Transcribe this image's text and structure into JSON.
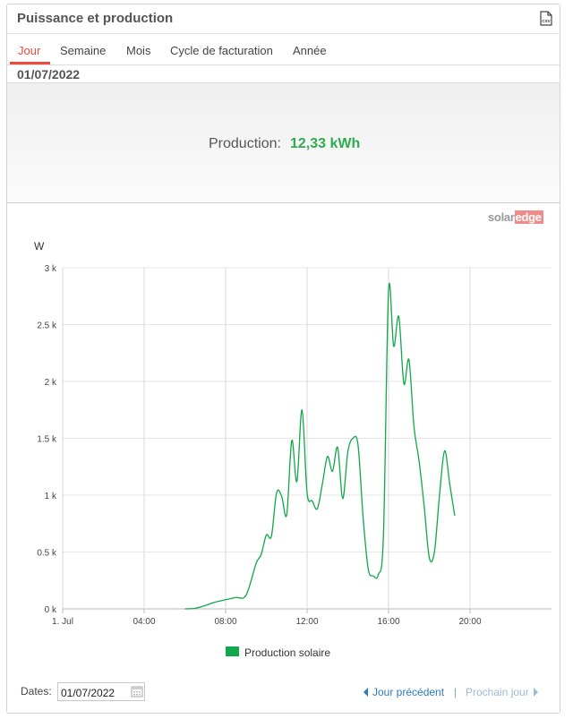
{
  "header": {
    "title": "Puissance et production",
    "csv_icon": "csv-file-icon"
  },
  "tabs": [
    {
      "label": "Jour",
      "active": true
    },
    {
      "label": "Semaine",
      "active": false
    },
    {
      "label": "Mois",
      "active": false
    },
    {
      "label": "Cycle de facturation",
      "active": false
    },
    {
      "label": "Année",
      "active": false
    }
  ],
  "current_date": "01/07/2022",
  "summary": {
    "label": "Production:",
    "value": "12,33 kWh",
    "value_color": "#2eac4f"
  },
  "logo": {
    "solar": "solar",
    "edge": "edge"
  },
  "chart_data": {
    "type": "line",
    "title": "",
    "ylabel": "W",
    "xlabel": "",
    "ylim": [
      0,
      3000
    ],
    "xlim": [
      0,
      24
    ],
    "yticks": [
      {
        "value": 0,
        "label": "0 k"
      },
      {
        "value": 500,
        "label": "0.5 k"
      },
      {
        "value": 1000,
        "label": "1 k"
      },
      {
        "value": 1500,
        "label": "1.5 k"
      },
      {
        "value": 2000,
        "label": "2 k"
      },
      {
        "value": 2500,
        "label": "2.5 k"
      },
      {
        "value": 3000,
        "label": "3 k"
      }
    ],
    "xticks": [
      {
        "value": 0,
        "label": "1. Jul"
      },
      {
        "value": 4,
        "label": "04:00"
      },
      {
        "value": 8,
        "label": "08:00"
      },
      {
        "value": 12,
        "label": "12:00"
      },
      {
        "value": 16,
        "label": "16:00"
      },
      {
        "value": 20,
        "label": "20:00"
      }
    ],
    "grid": true,
    "legend_position": "bottom",
    "series": [
      {
        "name": "Production solaire",
        "color": "#10a84a",
        "x": [
          6.0,
          6.5,
          7.0,
          7.5,
          8.0,
          8.5,
          9.0,
          9.5,
          9.75,
          10.0,
          10.25,
          10.5,
          10.75,
          11.0,
          11.25,
          11.5,
          11.75,
          12.0,
          12.25,
          12.5,
          12.75,
          13.0,
          13.25,
          13.5,
          13.75,
          14.0,
          14.25,
          14.5,
          14.75,
          15.0,
          15.25,
          15.5,
          15.75,
          16.0,
          16.25,
          16.5,
          16.75,
          17.0,
          17.25,
          17.5,
          17.75,
          18.0,
          18.25,
          18.5,
          18.75,
          19.0,
          19.25
        ],
        "y": [
          0,
          5,
          30,
          60,
          80,
          100,
          120,
          400,
          480,
          650,
          640,
          1020,
          990,
          830,
          1480,
          1120,
          1750,
          1020,
          950,
          880,
          1100,
          1340,
          1210,
          1420,
          970,
          1380,
          1500,
          1440,
          800,
          350,
          290,
          300,
          650,
          2800,
          2310,
          2570,
          1980,
          2190,
          1600,
          1300,
          900,
          450,
          500,
          1000,
          1390,
          1100,
          820
        ]
      }
    ]
  },
  "footer": {
    "dates_label": "Dates:",
    "date_value": "01/07/2022",
    "prev_label": "Jour précédent",
    "separator": "|",
    "next_label": "Prochain jour"
  }
}
